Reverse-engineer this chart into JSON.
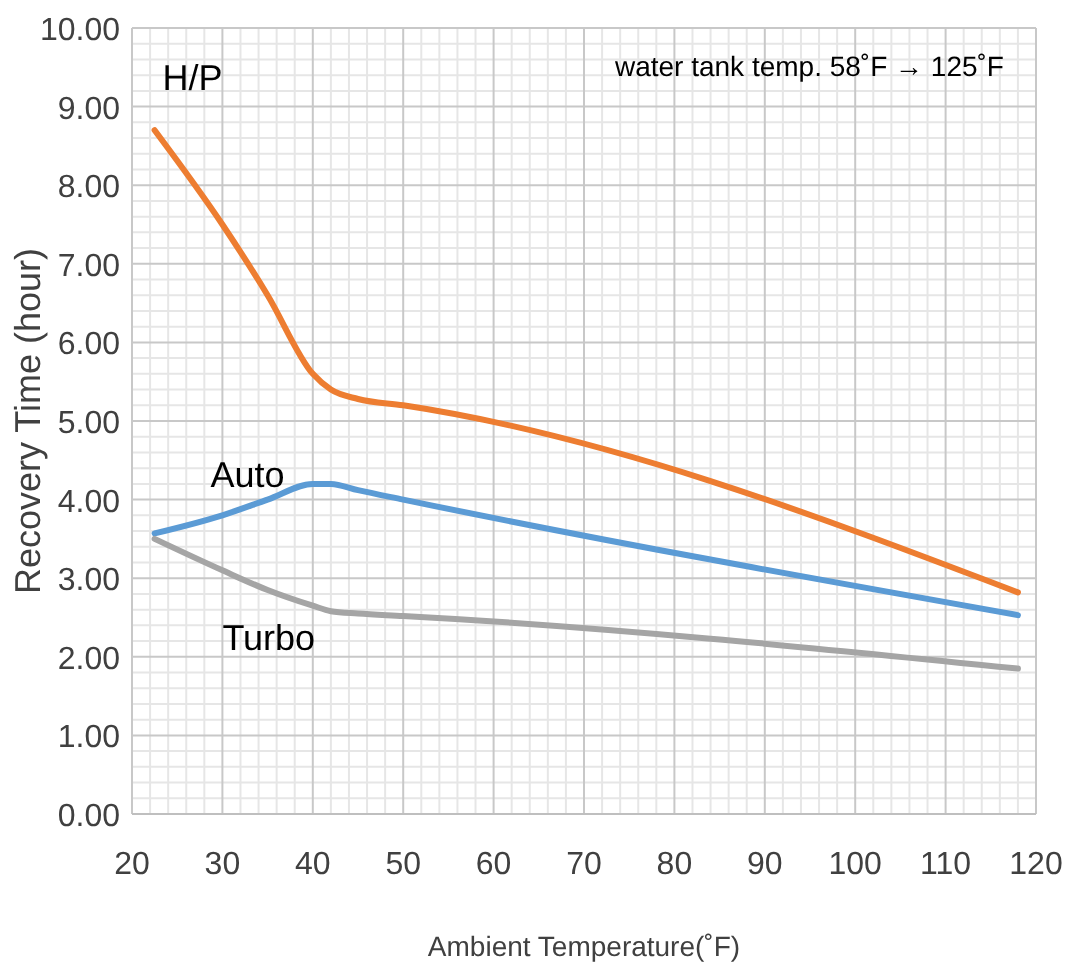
{
  "chart_data": {
    "type": "line",
    "xlabel": "Ambient Temperature(˚F)",
    "ylabel": "Recovery Time (hour)",
    "annotations": [
      "water tank temp. 58˚F → 125˚F"
    ],
    "xlim": [
      20,
      120
    ],
    "xticks": [
      20,
      30,
      40,
      50,
      60,
      70,
      80,
      90,
      100,
      110,
      120
    ],
    "ylim": [
      0,
      10
    ],
    "yticks": [
      {
        "value": 0,
        "label": "0.00"
      },
      {
        "value": 1,
        "label": "1.00"
      },
      {
        "value": 2,
        "label": "2.00"
      },
      {
        "value": 3,
        "label": "3.00"
      },
      {
        "value": 4,
        "label": "4.00"
      },
      {
        "value": 5,
        "label": "5.00"
      },
      {
        "value": 6,
        "label": "6.00"
      },
      {
        "value": 7,
        "label": "7.00"
      },
      {
        "value": 8,
        "label": "8.00"
      },
      {
        "value": 9,
        "label": "9.00"
      },
      {
        "value": 10,
        "label": "10.00"
      }
    ],
    "grid": true,
    "marker": "none",
    "line_style": "solid",
    "x": [
      22.5,
      30,
      35,
      40,
      42,
      45,
      50,
      118
    ],
    "series": [
      {
        "name": "H/P",
        "color": "#ed7d31",
        "values": [
          8.7,
          7.5,
          6.6,
          5.6,
          5.4,
          5.28,
          5.2,
          2.82
        ]
      },
      {
        "name": "Auto",
        "color": "#5b9bd5",
        "values": [
          3.57,
          3.8,
          4.0,
          4.2,
          4.2,
          4.12,
          4.0,
          2.53
        ]
      },
      {
        "name": "Turbo",
        "color": "#a5a5a5",
        "values": [
          3.5,
          3.1,
          2.85,
          2.65,
          2.58,
          2.55,
          2.52,
          1.85
        ]
      }
    ]
  }
}
